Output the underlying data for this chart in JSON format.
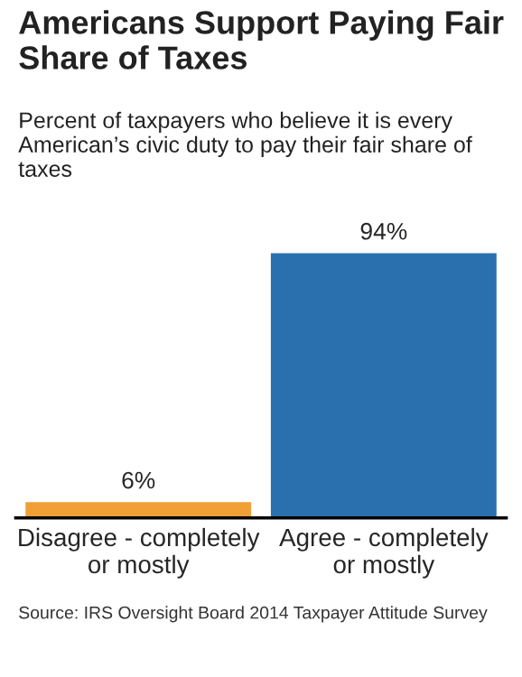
{
  "chart_data": {
    "type": "bar",
    "title": "Americans Support Paying Fair Share of Taxes",
    "subtitle": "Percent of taxpayers who believe it is every American’s civic duty to pay their fair share of taxes",
    "categories": [
      "Disagree - completely\nor mostly",
      "Agree - completely\nor mostly"
    ],
    "values": [
      6,
      94
    ],
    "colors": [
      "#f0a037",
      "#2a70ae"
    ],
    "value_labels": [
      "6%",
      "94%"
    ],
    "annotations": [
      "Source: IRS Oversight Board 2014 Taxpayer Attitude Survey"
    ]
  }
}
